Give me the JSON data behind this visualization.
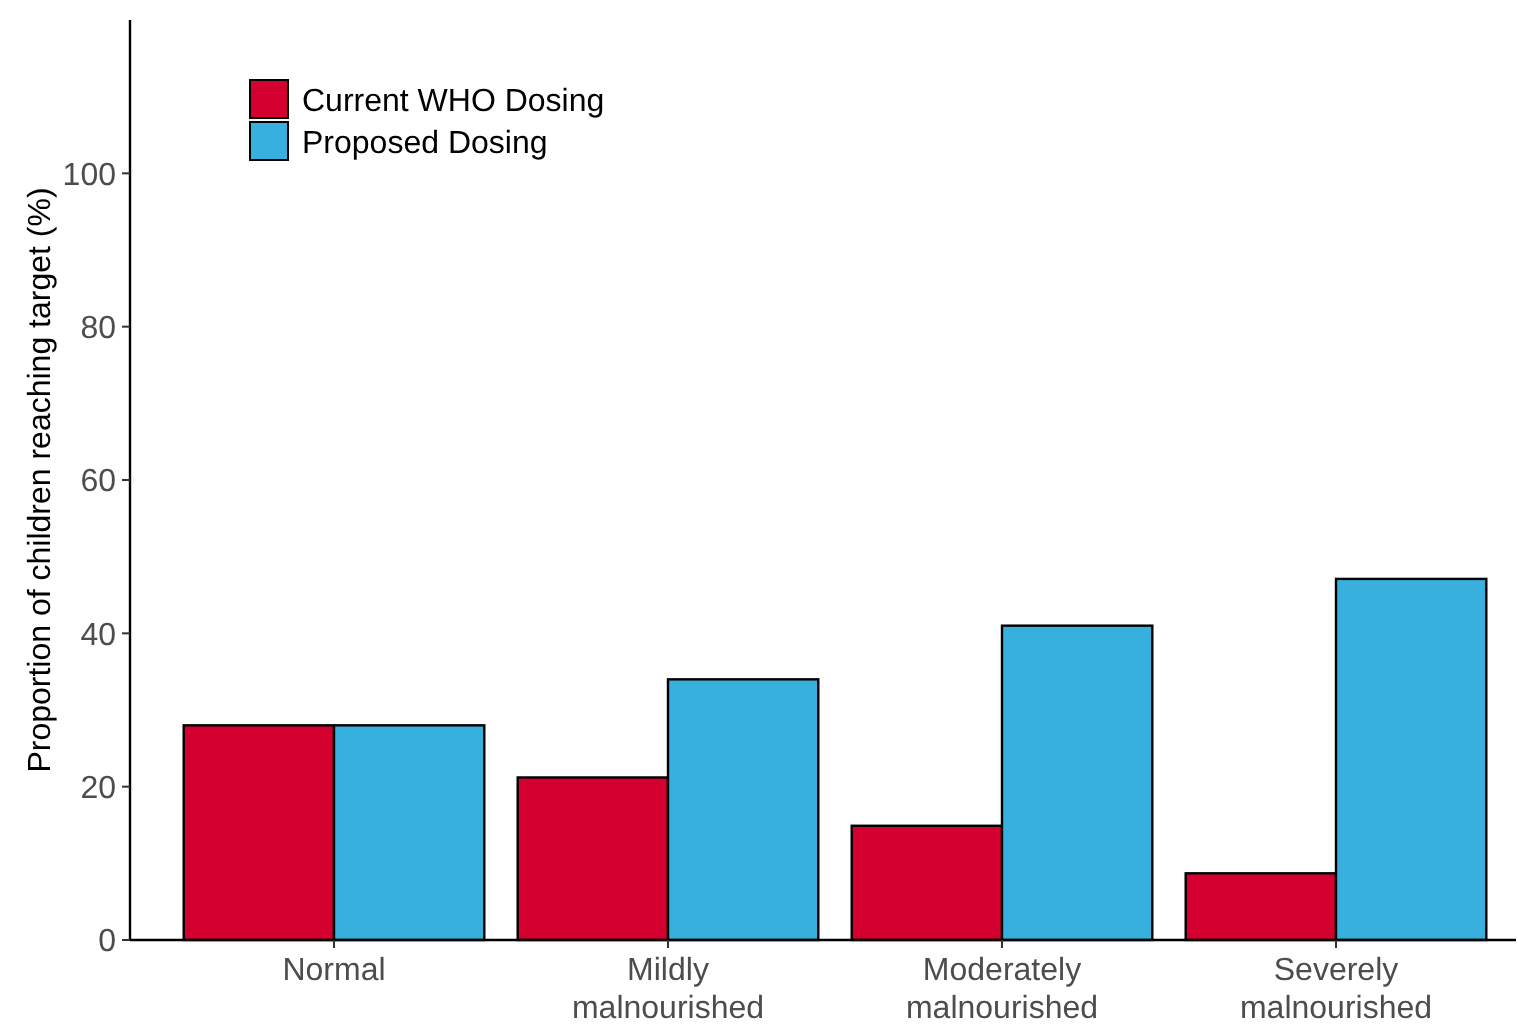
{
  "chart_data": {
    "type": "bar",
    "ylabel": "Proportion of children reaching target (%)",
    "categories": [
      "Normal",
      "Mildly malnourished",
      "Moderately malnourished",
      "Severely malnourished"
    ],
    "series": [
      {
        "name": "Current WHO Dosing",
        "color": "#d40030",
        "values": [
          28,
          21.2,
          14.9,
          8.7
        ]
      },
      {
        "name": "Proposed Dosing",
        "color": "#37b0de",
        "values": [
          28,
          34,
          41,
          47.1
        ]
      }
    ],
    "ylim": [
      0,
      120
    ],
    "yticks": [
      0,
      20,
      40,
      60,
      80,
      100
    ],
    "grid": false,
    "legend": "top left"
  }
}
